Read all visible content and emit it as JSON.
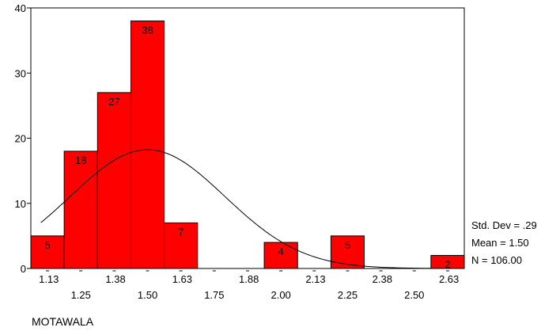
{
  "chart_data": {
    "type": "bar",
    "subtype": "histogram",
    "variable": "MOTAWALA",
    "ylim": [
      0,
      40
    ],
    "yticks": [
      "0",
      "10",
      "20",
      "30",
      "40"
    ],
    "xlim": [
      1.0625,
      2.6875
    ],
    "bins": [
      {
        "center": 1.125,
        "count": 5
      },
      {
        "center": 1.25,
        "count": 18
      },
      {
        "center": 1.375,
        "count": 27
      },
      {
        "center": 1.5,
        "count": 38
      },
      {
        "center": 1.625,
        "count": 7
      },
      {
        "center": 1.75,
        "count": 0
      },
      {
        "center": 1.875,
        "count": 0
      },
      {
        "center": 2.0,
        "count": 4
      },
      {
        "center": 2.125,
        "count": 0
      },
      {
        "center": 2.25,
        "count": 5
      },
      {
        "center": 2.375,
        "count": 0
      },
      {
        "center": 2.5,
        "count": 0
      },
      {
        "center": 2.625,
        "count": 2
      }
    ],
    "bar_labels": [
      "5",
      "18",
      "27",
      "38",
      "7",
      "4",
      "5",
      "2"
    ],
    "xticks_row1": [
      "1.13",
      "1.38",
      "1.63",
      "1.88",
      "2.13",
      "2.38",
      "2.63"
    ],
    "xticks_row2": [
      "1.25",
      "1.50",
      "1.75",
      "2.00",
      "2.25",
      "2.50"
    ],
    "normal_curve": {
      "mean": 1.5,
      "std_dev": 0.29,
      "n": 106,
      "bin_width": 0.125
    },
    "stats": {
      "std_dev": "Std. Dev = .29",
      "mean": "Mean = 1.50",
      "n": "N = 106.00"
    },
    "bar_color": "#ff0000",
    "grid": false
  }
}
